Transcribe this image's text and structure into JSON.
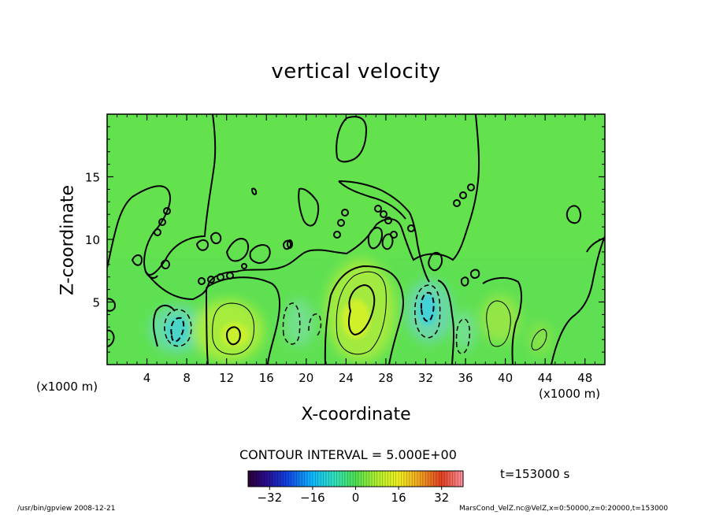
{
  "chart_data": {
    "type": "heatmap",
    "title": "vertical velocity",
    "xlabel": "X-coordinate",
    "ylabel": "Z-coordinate",
    "x_unit": "(x1000 m)",
    "y_unit": "(x1000 m)",
    "xlim": [
      0,
      50
    ],
    "ylim": [
      0,
      20
    ],
    "x_ticks": [
      4,
      8,
      12,
      16,
      20,
      24,
      28,
      32,
      36,
      40,
      44,
      48
    ],
    "y_ticks": [
      5,
      10,
      15
    ],
    "contour_interval_label": "CONTOUR INTERVAL = 5.000E+00",
    "time_label": "t=153000 s",
    "colorbar": {
      "range": [
        -40,
        40
      ],
      "ticks": [
        -32,
        -16,
        0,
        16,
        32
      ]
    },
    "features": [
      {
        "x": 12.2,
        "z": 2.3,
        "value": 16,
        "kind": "updraft"
      },
      {
        "x": 25.5,
        "z": 3.8,
        "value": 22,
        "kind": "updraft"
      },
      {
        "x": 39.8,
        "z": 3.3,
        "value": 8,
        "kind": "updraft"
      },
      {
        "x": 43.5,
        "z": 2.0,
        "value": 5,
        "kind": "updraft"
      },
      {
        "x": 7.0,
        "z": 2.5,
        "value": -14,
        "kind": "downdraft"
      },
      {
        "x": 19.0,
        "z": 3.0,
        "value": -6,
        "kind": "downdraft"
      },
      {
        "x": 31.8,
        "z": 4.3,
        "value": -16,
        "kind": "downdraft"
      },
      {
        "x": 35.5,
        "z": 2.5,
        "value": -7,
        "kind": "downdraft"
      }
    ]
  },
  "footer_left": "/usr/bin/gpview  2008-12-21",
  "footer_right": "MarsCond_VelZ.nc@VelZ,x=0:50000,z=0:20000,t=153000"
}
